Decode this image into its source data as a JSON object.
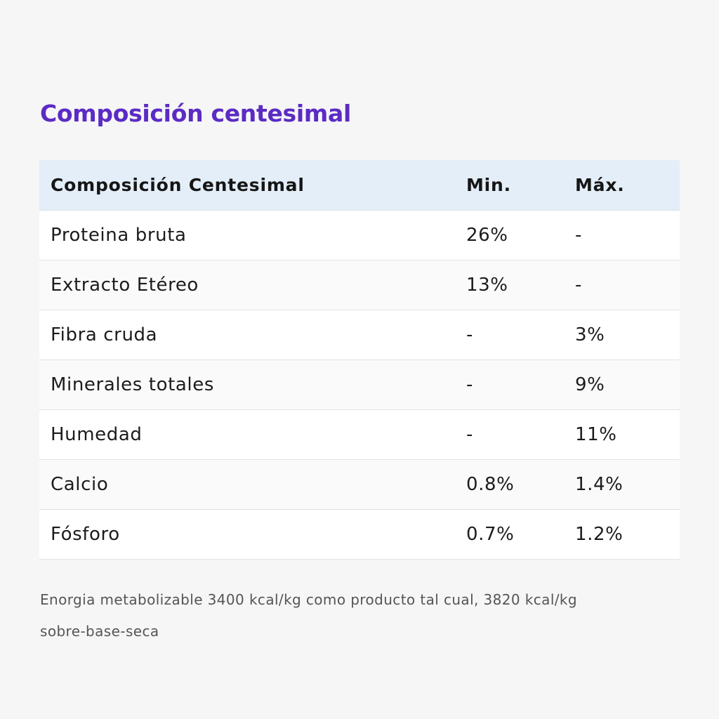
{
  "title": "Composición centesimal",
  "table": {
    "headers": [
      "Composición Centesimal",
      "Min.",
      "Máx."
    ],
    "rows": [
      [
        "Proteina bruta",
        "26%",
        "-"
      ],
      [
        "Extracto Etéreo",
        "13%",
        "-"
      ],
      [
        "Fibra cruda",
        "-",
        "3%"
      ],
      [
        "Minerales totales",
        "-",
        "9%"
      ],
      [
        "Humedad",
        "-",
        "11%"
      ],
      [
        "Calcio",
        "0.8%",
        "1.4%"
      ],
      [
        "Fósforo",
        "0.7%",
        "1.2%"
      ]
    ]
  },
  "note": {
    "line1": "Enorgia metabolizable 3400 kcal/kg como producto tal cual, 3820 kcal/kg",
    "line2": "sobre-base-seca"
  },
  "colors": {
    "title": "#5b2bc4",
    "header_bg": "#e3eef8",
    "page_bg": "#f6f6f6"
  }
}
